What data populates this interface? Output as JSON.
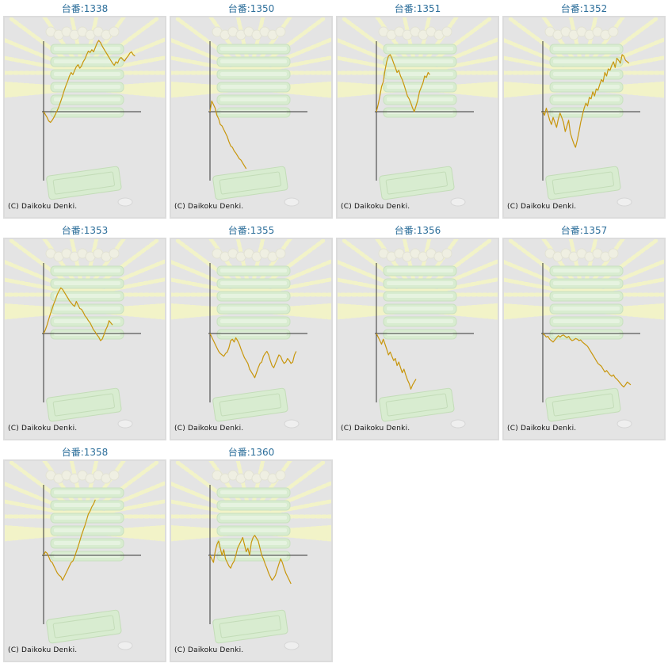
{
  "colors": {
    "title": "#2c6e9a",
    "line": "#c8960c",
    "axis": "#333333",
    "panel": "#e4e4e4"
  },
  "chart_data": [
    {
      "type": "line",
      "title": "台番:1338",
      "copyright": "(C) Daikoku Denki.",
      "y": [
        0,
        -4,
        -8,
        -13,
        -15,
        -12,
        -8,
        -3,
        2,
        8,
        15,
        22,
        30,
        37,
        43,
        50,
        55,
        52,
        58,
        63,
        66,
        61,
        64,
        70,
        74,
        80,
        85,
        83,
        87,
        84,
        90,
        96,
        100,
        97,
        92,
        88,
        84,
        80,
        76,
        72,
        68,
        65,
        70,
        68,
        74,
        76,
        73,
        71,
        75,
        78,
        82,
        84,
        80,
        78
      ]
    },
    {
      "type": "line",
      "title": "台番:1350",
      "copyright": "(C) Daikoku Denki.",
      "y": [
        0,
        15,
        10,
        5,
        -5,
        -10,
        -18,
        -20,
        -25,
        -30,
        -35,
        -42,
        -48,
        -50,
        -55,
        -58,
        -62,
        -66,
        -68,
        -72,
        -76,
        -80
      ]
    },
    {
      "type": "line",
      "title": "台番:1351",
      "copyright": "(C) Daikoku Denki.",
      "y": [
        0,
        10,
        22,
        35,
        42,
        58,
        70,
        78,
        80,
        75,
        68,
        62,
        55,
        58,
        50,
        45,
        38,
        30,
        22,
        18,
        12,
        5,
        0,
        8,
        16,
        28,
        34,
        40,
        50,
        48,
        55,
        52
      ]
    },
    {
      "type": "line",
      "title": "台番:1352",
      "copyright": "(C) Daikoku Denki.",
      "y": [
        0,
        -5,
        5,
        -3,
        -12,
        -18,
        -8,
        -15,
        -22,
        -10,
        -2,
        -8,
        -15,
        -28,
        -20,
        -12,
        -30,
        -38,
        -45,
        -50,
        -40,
        -28,
        -15,
        -5,
        5,
        12,
        8,
        20,
        18,
        28,
        22,
        32,
        30,
        38,
        45,
        42,
        55,
        50,
        60,
        58,
        65,
        70,
        62,
        75,
        72,
        68,
        80,
        78,
        72,
        70,
        68
      ]
    },
    {
      "type": "line",
      "title": "台番:1353",
      "copyright": "(C) Daikoku Denki.",
      "y": [
        0,
        5,
        12,
        20,
        28,
        35,
        42,
        48,
        55,
        60,
        64,
        62,
        58,
        54,
        50,
        46,
        43,
        40,
        38,
        45,
        40,
        35,
        34,
        30,
        25,
        22,
        18,
        15,
        10,
        5,
        2,
        -2,
        -5,
        -10,
        -8,
        -2,
        5,
        10,
        18,
        15,
        12
      ]
    },
    {
      "type": "line",
      "title": "台番:1355",
      "copyright": "(C) Daikoku Denki.",
      "y": [
        0,
        -5,
        -10,
        -15,
        -20,
        -25,
        -28,
        -30,
        -32,
        -28,
        -26,
        -20,
        -10,
        -8,
        -12,
        -6,
        -10,
        -15,
        -22,
        -28,
        -34,
        -38,
        -42,
        -50,
        -54,
        -58,
        -62,
        -55,
        -48,
        -42,
        -40,
        -32,
        -28,
        -25,
        -30,
        -38,
        -45,
        -48,
        -42,
        -36,
        -30,
        -32,
        -38,
        -42,
        -40,
        -35,
        -38,
        -42,
        -40,
        -30,
        -25
      ]
    },
    {
      "type": "line",
      "title": "台番:1356",
      "copyright": "(C) Daikoku Denki.",
      "y": [
        0,
        -5,
        -10,
        -15,
        -8,
        -15,
        -22,
        -30,
        -26,
        -32,
        -38,
        -35,
        -45,
        -40,
        -48,
        -55,
        -50,
        -58,
        -65,
        -70,
        -78,
        -72,
        -68,
        -64
      ]
    },
    {
      "type": "line",
      "title": "台番:1357",
      "copyright": "(C) Daikoku Denki.",
      "y": [
        0,
        -2,
        -5,
        -4,
        -8,
        -10,
        -12,
        -9,
        -6,
        -3,
        -5,
        -3,
        -2,
        -4,
        -6,
        -4,
        -8,
        -10,
        -9,
        -7,
        -8,
        -10,
        -9,
        -12,
        -14,
        -16,
        -18,
        -22,
        -26,
        -30,
        -34,
        -38,
        -42,
        -44,
        -46,
        -50,
        -54,
        -52,
        -55,
        -58,
        -60,
        -58,
        -62,
        -64,
        -67,
        -70,
        -73,
        -75,
        -72,
        -68,
        -70,
        -72
      ]
    },
    {
      "type": "line",
      "title": "台番:1358",
      "copyright": "(C) Daikoku Denki.",
      "y": [
        0,
        5,
        3,
        -2,
        -8,
        -10,
        -15,
        -20,
        -25,
        -28,
        -30,
        -35,
        -30,
        -25,
        -20,
        -15,
        -10,
        -8,
        -2,
        5,
        12,
        20,
        28,
        35,
        42,
        50,
        58,
        62,
        68,
        72,
        78
      ]
    },
    {
      "type": "line",
      "title": "台番:1360",
      "copyright": "(C) Daikoku Denki.",
      "y": [
        0,
        -5,
        -10,
        5,
        15,
        20,
        10,
        0,
        8,
        -5,
        -10,
        -15,
        -18,
        -12,
        -8,
        0,
        10,
        15,
        20,
        25,
        15,
        5,
        10,
        0,
        18,
        25,
        28,
        24,
        20,
        10,
        0,
        -5,
        -12,
        -18,
        -25,
        -30,
        -35,
        -32,
        -28,
        -20,
        -12,
        -5,
        -10,
        -18,
        -25,
        -30,
        -35,
        -40
      ]
    }
  ]
}
